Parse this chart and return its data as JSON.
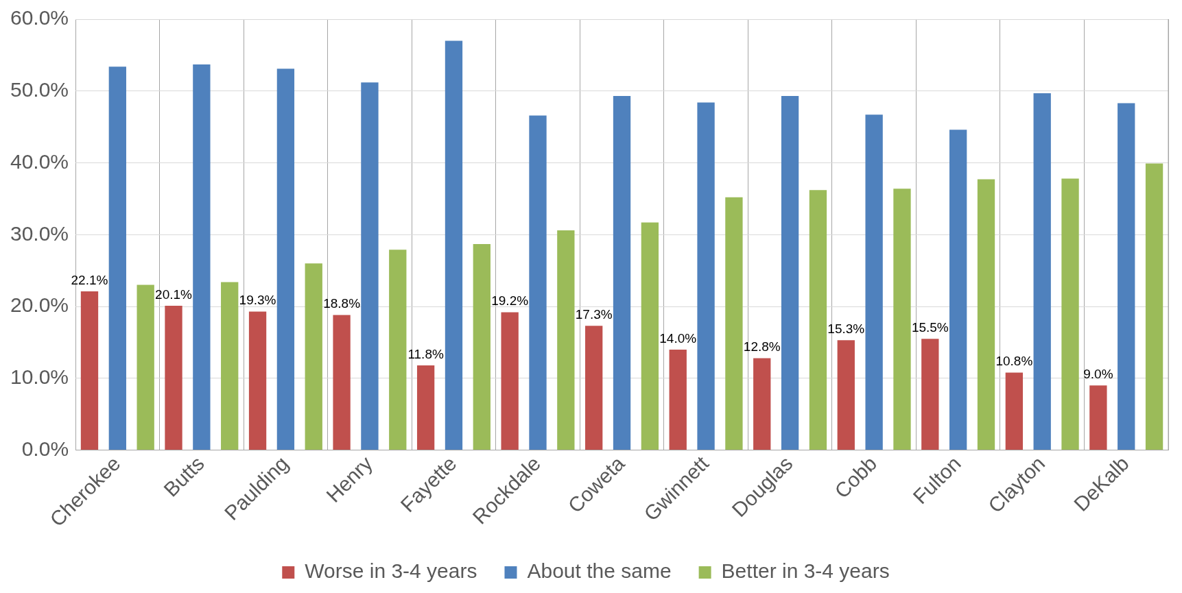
{
  "chart_data": {
    "type": "bar",
    "categories": [
      "Cherokee",
      "Butts",
      "Paulding",
      "Henry",
      "Fayette",
      "Rockdale",
      "Coweta",
      "Gwinnett",
      "Douglas",
      "Cobb",
      "Fulton",
      "Clayton",
      "DeKalb"
    ],
    "series": [
      {
        "name": "Worse in 3-4 years",
        "color": "#c0504d",
        "values": [
          22.1,
          20.1,
          19.3,
          18.8,
          11.8,
          19.2,
          17.3,
          14.0,
          12.8,
          15.3,
          15.5,
          10.8,
          9.0
        ],
        "value_labels": [
          "22.1%",
          "20.1%",
          "19.3%",
          "18.8%",
          "11.8%",
          "19.2%",
          "17.3%",
          "14.0%",
          "12.8%",
          "15.3%",
          "15.5%",
          "10.8%",
          "9.0%"
        ]
      },
      {
        "name": "About the same",
        "color": "#4f81bd",
        "values": [
          53.4,
          53.7,
          53.1,
          51.2,
          57.0,
          46.6,
          49.3,
          48.4,
          49.3,
          46.7,
          44.6,
          49.7,
          48.3
        ]
      },
      {
        "name": "Better in 3-4 years",
        "color": "#9bbb59",
        "values": [
          23.0,
          23.4,
          26.0,
          27.9,
          28.7,
          30.6,
          31.7,
          35.2,
          36.2,
          36.4,
          37.7,
          37.8,
          39.9
        ]
      }
    ],
    "ylim": [
      0,
      60
    ],
    "yticks": [
      {
        "value": 0,
        "label": "0.0%"
      },
      {
        "value": 10,
        "label": "10.0%"
      },
      {
        "value": 20,
        "label": "20.0%"
      },
      {
        "value": 30,
        "label": "30.0%"
      },
      {
        "value": 40,
        "label": "40.0%"
      },
      {
        "value": 50,
        "label": "50.0%"
      },
      {
        "value": 60,
        "label": "60.0%"
      }
    ],
    "grid": true,
    "legend": "bottom"
  }
}
